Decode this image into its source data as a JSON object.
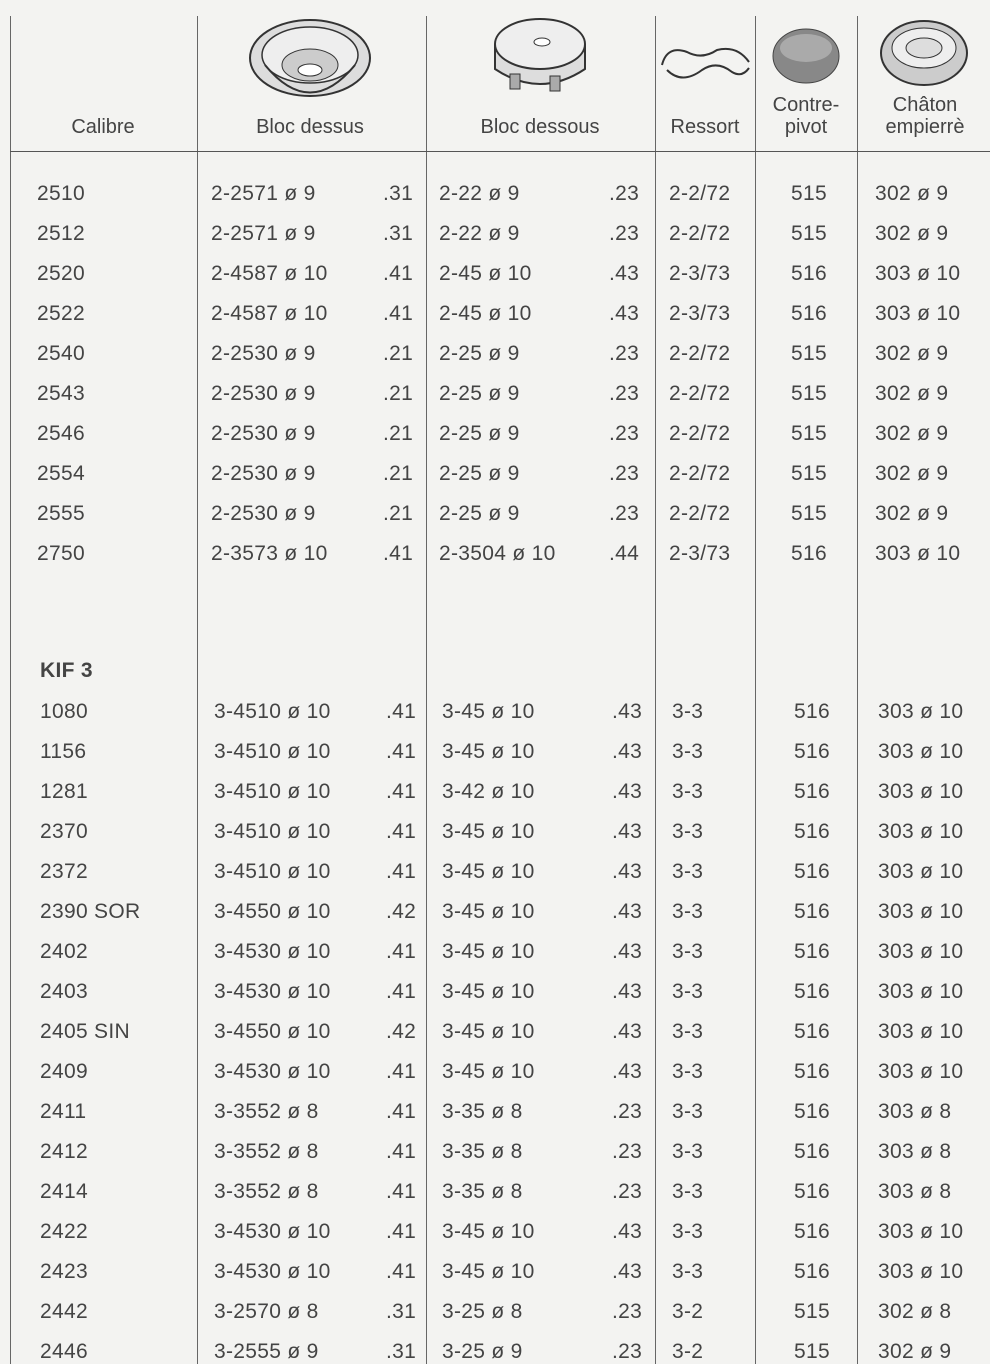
{
  "table": {
    "header": [
      [
        "Calibre"
      ],
      [
        "Bloc dessus"
      ],
      [
        "Bloc dessous"
      ],
      [
        "Ressort"
      ],
      [
        "Contre-",
        "pivot"
      ],
      [
        "Châton",
        "empierrè"
      ]
    ],
    "groups": [
      {
        "rows": [
          [
            "2510",
            "2-2571 ø 9",
            ".31",
            "2-22 ø 9",
            ".23",
            "2-2/72",
            "515",
            "302 ø 9"
          ],
          [
            "2512",
            "2-2571 ø 9",
            ".31",
            "2-22 ø 9",
            ".23",
            "2-2/72",
            "515",
            "302 ø 9"
          ],
          [
            "2520",
            "2-4587 ø 10",
            ".41",
            "2-45 ø 10",
            ".43",
            "2-3/73",
            "516",
            "303 ø 10"
          ],
          [
            "2522",
            "2-4587 ø 10",
            ".41",
            "2-45 ø 10",
            ".43",
            "2-3/73",
            "516",
            "303 ø 10"
          ],
          [
            "2540",
            "2-2530 ø 9",
            ".21",
            "2-25 ø 9",
            ".23",
            "2-2/72",
            "515",
            "302 ø 9"
          ],
          [
            "2543",
            "2-2530 ø 9",
            ".21",
            "2-25 ø 9",
            ".23",
            "2-2/72",
            "515",
            "302 ø 9"
          ],
          [
            "2546",
            "2-2530 ø 9",
            ".21",
            "2-25 ø 9",
            ".23",
            "2-2/72",
            "515",
            "302 ø 9"
          ],
          [
            "2554",
            "2-2530 ø 9",
            ".21",
            "2-25 ø 9",
            ".23",
            "2-2/72",
            "515",
            "302 ø 9"
          ],
          [
            "2555",
            "2-2530 ø 9",
            ".21",
            "2-25 ø 9",
            ".23",
            "2-2/72",
            "515",
            "302 ø 9"
          ],
          [
            "2750",
            "2-3573 ø 10",
            ".41",
            "2-3504 ø 10",
            ".44",
            "2-3/73",
            "516",
            "303 ø 10"
          ]
        ]
      },
      {
        "label": "KIF 3",
        "rows": [
          [
            "1080",
            "3-4510 ø 10",
            ".41",
            "3-45 ø 10",
            ".43",
            "3-3",
            "516",
            "303 ø 10"
          ],
          [
            "1156",
            "3-4510 ø 10",
            ".41",
            "3-45 ø 10",
            ".43",
            "3-3",
            "516",
            "303 ø 10"
          ],
          [
            "1281",
            "3-4510 ø 10",
            ".41",
            "3-42 ø 10",
            ".43",
            "3-3",
            "516",
            "303 ø 10"
          ],
          [
            "2370",
            "3-4510 ø 10",
            ".41",
            "3-45 ø 10",
            ".43",
            "3-3",
            "516",
            "303 ø 10"
          ],
          [
            "2372",
            "3-4510 ø 10",
            ".41",
            "3-45 ø 10",
            ".43",
            "3-3",
            "516",
            "303 ø 10"
          ],
          [
            "2390 SOR",
            "3-4550 ø 10",
            ".42",
            "3-45 ø 10",
            ".43",
            "3-3",
            "516",
            "303 ø 10"
          ],
          [
            "2402",
            "3-4530 ø 10",
            ".41",
            "3-45 ø 10",
            ".43",
            "3-3",
            "516",
            "303 ø 10"
          ],
          [
            "2403",
            "3-4530 ø 10",
            ".41",
            "3-45 ø 10",
            ".43",
            "3-3",
            "516",
            "303 ø 10"
          ],
          [
            "2405 SIN",
            "3-4550 ø 10",
            ".42",
            "3-45 ø 10",
            ".43",
            "3-3",
            "516",
            "303 ø 10"
          ],
          [
            "2409",
            "3-4530 ø 10",
            ".41",
            "3-45 ø 10",
            ".43",
            "3-3",
            "516",
            "303 ø 10"
          ],
          [
            "2411",
            "3-3552 ø 8",
            ".41",
            "3-35 ø 8",
            ".23",
            "3-3",
            "516",
            "303 ø 8"
          ],
          [
            "2412",
            "3-3552 ø 8",
            ".41",
            "3-35 ø 8",
            ".23",
            "3-3",
            "516",
            "303 ø 8"
          ],
          [
            "2414",
            "3-3552 ø 8",
            ".41",
            "3-35 ø 8",
            ".23",
            "3-3",
            "516",
            "303 ø 8"
          ],
          [
            "2422",
            "3-4530 ø 10",
            ".41",
            "3-45 ø 10",
            ".43",
            "3-3",
            "516",
            "303 ø 10"
          ],
          [
            "2423",
            "3-4530 ø 10",
            ".41",
            "3-45 ø 10",
            ".43",
            "3-3",
            "516",
            "303 ø 10"
          ],
          [
            "2442",
            "3-2570 ø 8",
            ".31",
            "3-25 ø 8",
            ".23",
            "3-2",
            "515",
            "302 ø 8"
          ],
          [
            "2446",
            "3-2555 ø 9",
            ".31",
            "3-25 ø 9",
            ".23",
            "3-2",
            "515",
            "302 ø 9"
          ]
        ]
      }
    ]
  }
}
